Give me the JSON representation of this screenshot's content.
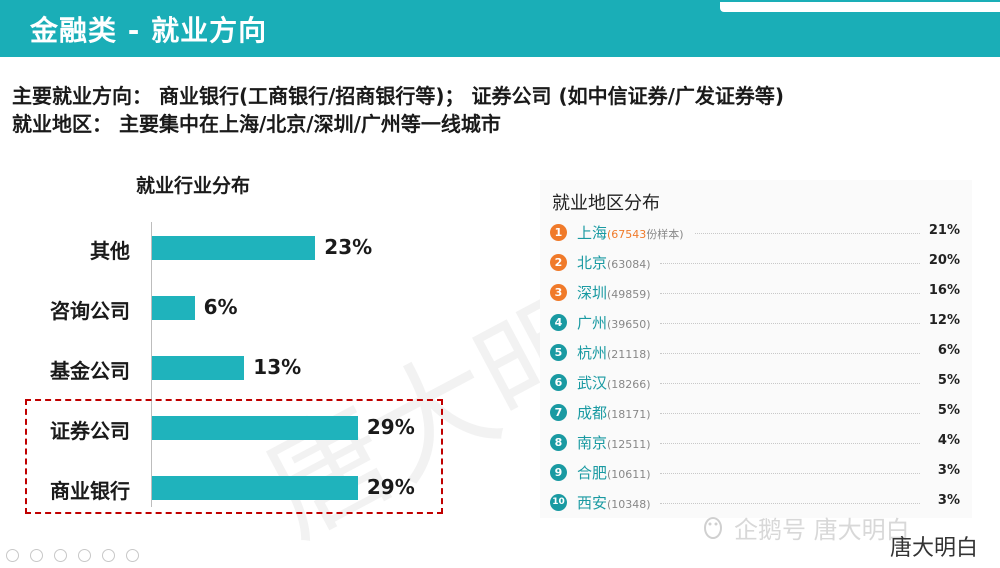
{
  "header": {
    "title": "金融类 - 就业方向"
  },
  "info": {
    "line1": "主要就业方向： 商业银行(工商银行/招商银行等)； 证券公司 (如中信证券/广发证券等)",
    "line2": "就业地区： 主要集中在上海/北京/深圳/广州等一线城市"
  },
  "chart_data": [
    {
      "type": "bar",
      "orientation": "horizontal",
      "title": "就业行业分布",
      "categories": [
        "其他",
        "咨询公司",
        "基金公司",
        "证券公司",
        "商业银行"
      ],
      "values": [
        23,
        6,
        13,
        29,
        29
      ],
      "value_labels": [
        "23%",
        "6%",
        "13%",
        "29%",
        "29%"
      ],
      "xlim": [
        0,
        50
      ],
      "highlighted": [
        "证券公司",
        "商业银行"
      ],
      "color": "#1fb3bc",
      "highlight_color": "#c00000"
    },
    {
      "type": "table",
      "title": "就业地区分布",
      "unit_note": "份样本",
      "rows": [
        {
          "rank": "1",
          "city": "上海",
          "count": "67543",
          "pct": "21%",
          "badge": "#f07a2a"
        },
        {
          "rank": "2",
          "city": "北京",
          "count": "63084",
          "pct": "20%",
          "badge": "#f07a2a"
        },
        {
          "rank": "3",
          "city": "深圳",
          "count": "49859",
          "pct": "16%",
          "badge": "#f07a2a"
        },
        {
          "rank": "4",
          "city": "广州",
          "count": "39650",
          "pct": "12%",
          "badge": "#1a9aa2"
        },
        {
          "rank": "5",
          "city": "杭州",
          "count": "21118",
          "pct": "6%",
          "badge": "#1a9aa2"
        },
        {
          "rank": "6",
          "city": "武汉",
          "count": "18266",
          "pct": "5%",
          "badge": "#1a9aa2"
        },
        {
          "rank": "7",
          "city": "成都",
          "count": "18171",
          "pct": "5%",
          "badge": "#1a9aa2"
        },
        {
          "rank": "8",
          "city": "南京",
          "count": "12511",
          "pct": "4%",
          "badge": "#1a9aa2"
        },
        {
          "rank": "9",
          "city": "合肥",
          "count": "10611",
          "pct": "3%",
          "badge": "#1a9aa2"
        },
        {
          "rank": "10",
          "city": "西安",
          "count": "10348",
          "pct": "3%",
          "badge": "#1a9aa2"
        }
      ]
    }
  ],
  "watermark": {
    "big": "唐大明",
    "source": "企鹅号 唐大明白",
    "sign": "唐大明白"
  },
  "icons": {
    "penguin": "penguin-icon",
    "toolbar": [
      "back-icon",
      "forward-icon",
      "pen-icon",
      "grid-icon",
      "zoom-icon",
      "more-icon"
    ]
  }
}
